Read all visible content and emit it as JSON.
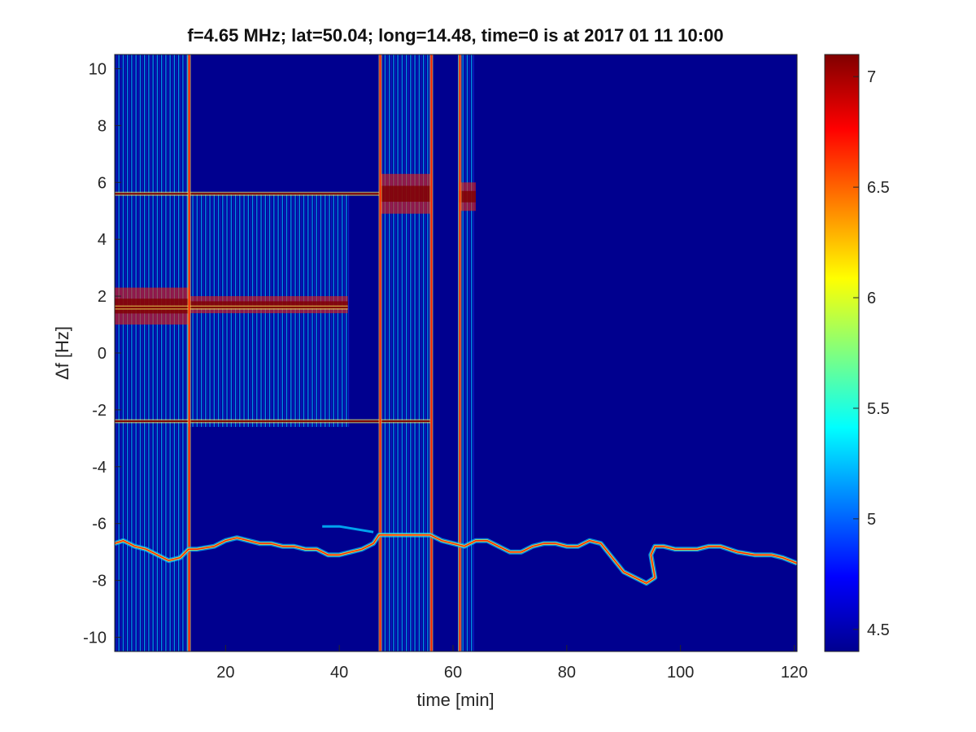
{
  "chart_data": {
    "type": "heatmap",
    "title": "f=4.65 MHz;  lat=50.04; long=14.48, time=0 is at 2017 01 11 10:00",
    "xlabel": "time [min]",
    "ylabel": "Δf [Hz]",
    "xlim": [
      0.5,
      120.5
    ],
    "ylim": [
      -10.5,
      10.5
    ],
    "xticks": [
      20,
      40,
      60,
      80,
      100,
      120
    ],
    "xtick_labels": [
      "20",
      "40",
      "60",
      "80",
      "100",
      "120"
    ],
    "yticks": [
      10,
      8,
      6,
      4,
      2,
      0,
      -2,
      -4,
      -6,
      -8,
      -10
    ],
    "ytick_labels": [
      "10",
      "8",
      "6",
      "4",
      "2",
      "0",
      "-2",
      "-4",
      "-6",
      "-8",
      "-10"
    ],
    "colormap": "jet",
    "clim": [
      4.4,
      7.1
    ],
    "colorbar_ticks": [
      7,
      6.5,
      6,
      5.5,
      5,
      4.5
    ],
    "colorbar_tick_labels": [
      "7",
      "6.5",
      "6",
      "5.5",
      "5",
      "4.5"
    ],
    "background_color": "#00008f",
    "colors": {
      "low": "#00008f",
      "mid": "#00bfff",
      "high": "#ff2000",
      "peak": "#800000"
    },
    "features": {
      "striped_blocks": [
        {
          "x": [
            0.5,
            13.5
          ],
          "y": [
            -10.5,
            10.5
          ]
        },
        {
          "x": [
            13.5,
            41.5
          ],
          "y": [
            -2.6,
            5.6
          ]
        },
        {
          "x": [
            47.3,
            56.2
          ],
          "y": [
            -10.5,
            10.5
          ]
        },
        {
          "x": [
            61,
            64
          ],
          "y": [
            -10.5,
            10.5
          ]
        }
      ],
      "vertical_lines": [
        {
          "x": 13.6,
          "y": [
            -10.5,
            10.5
          ]
        },
        {
          "x": 47.2,
          "y": [
            -10.5,
            10.5
          ]
        },
        {
          "x": 56.2,
          "y": [
            -10.5,
            10.5
          ]
        },
        {
          "x": 61.2,
          "y": [
            -10.5,
            10.5
          ]
        }
      ],
      "horizontal_lines": [
        {
          "y": 5.6,
          "x": [
            0.5,
            47
          ]
        },
        {
          "y": 1.6,
          "x": [
            0.5,
            41.5
          ]
        },
        {
          "y": -2.4,
          "x": [
            0.5,
            56
          ]
        }
      ],
      "hot_bands": [
        {
          "x": [
            0.5,
            13.5
          ],
          "y": [
            1,
            2.3
          ]
        },
        {
          "x": [
            13.5,
            41.5
          ],
          "y": [
            1.4,
            2
          ]
        },
        {
          "x": [
            47.3,
            56
          ],
          "y": [
            4.9,
            6.3
          ]
        },
        {
          "x": [
            61,
            64
          ],
          "y": [
            5,
            6
          ]
        }
      ],
      "trace": [
        [
          0.5,
          -6.7
        ],
        [
          2,
          -6.6
        ],
        [
          4,
          -6.8
        ],
        [
          6,
          -6.9
        ],
        [
          8,
          -7.1
        ],
        [
          10,
          -7.3
        ],
        [
          12,
          -7.2
        ],
        [
          13.5,
          -6.9
        ],
        [
          15,
          -6.9
        ],
        [
          18,
          -6.8
        ],
        [
          20,
          -6.6
        ],
        [
          22,
          -6.5
        ],
        [
          24,
          -6.6
        ],
        [
          26,
          -6.7
        ],
        [
          28,
          -6.7
        ],
        [
          30,
          -6.8
        ],
        [
          32,
          -6.8
        ],
        [
          34,
          -6.9
        ],
        [
          36,
          -6.9
        ],
        [
          38,
          -7.1
        ],
        [
          40,
          -7.1
        ],
        [
          42,
          -7
        ],
        [
          44,
          -6.9
        ],
        [
          46,
          -6.7
        ],
        [
          47,
          -6.4
        ],
        [
          50,
          -6.4
        ],
        [
          53,
          -6.4
        ],
        [
          56,
          -6.4
        ],
        [
          58,
          -6.6
        ],
        [
          60,
          -6.7
        ],
        [
          62,
          -6.8
        ],
        [
          64,
          -6.6
        ],
        [
          66,
          -6.6
        ],
        [
          68,
          -6.8
        ],
        [
          70,
          -7.0
        ],
        [
          72,
          -7.0
        ],
        [
          74,
          -6.8
        ],
        [
          76,
          -6.7
        ],
        [
          78,
          -6.7
        ],
        [
          80,
          -6.8
        ],
        [
          82,
          -6.8
        ],
        [
          84,
          -6.6
        ],
        [
          86,
          -6.7
        ],
        [
          88,
          -7.2
        ],
        [
          90,
          -7.7
        ],
        [
          92,
          -7.9
        ],
        [
          94,
          -8.1
        ],
        [
          95.5,
          -7.9
        ],
        [
          94.8,
          -7.1
        ],
        [
          95.5,
          -6.8
        ],
        [
          97,
          -6.8
        ],
        [
          99,
          -6.9
        ],
        [
          101,
          -6.9
        ],
        [
          103,
          -6.9
        ],
        [
          105,
          -6.8
        ],
        [
          107,
          -6.8
        ],
        [
          110,
          -7
        ],
        [
          113,
          -7.1
        ],
        [
          116,
          -7.1
        ],
        [
          118,
          -7.2
        ],
        [
          120.5,
          -7.4
        ]
      ],
      "trace_secondary": [
        [
          37,
          -6.1
        ],
        [
          40,
          -6.1
        ],
        [
          43,
          -6.2
        ],
        [
          46,
          -6.3
        ]
      ]
    }
  }
}
